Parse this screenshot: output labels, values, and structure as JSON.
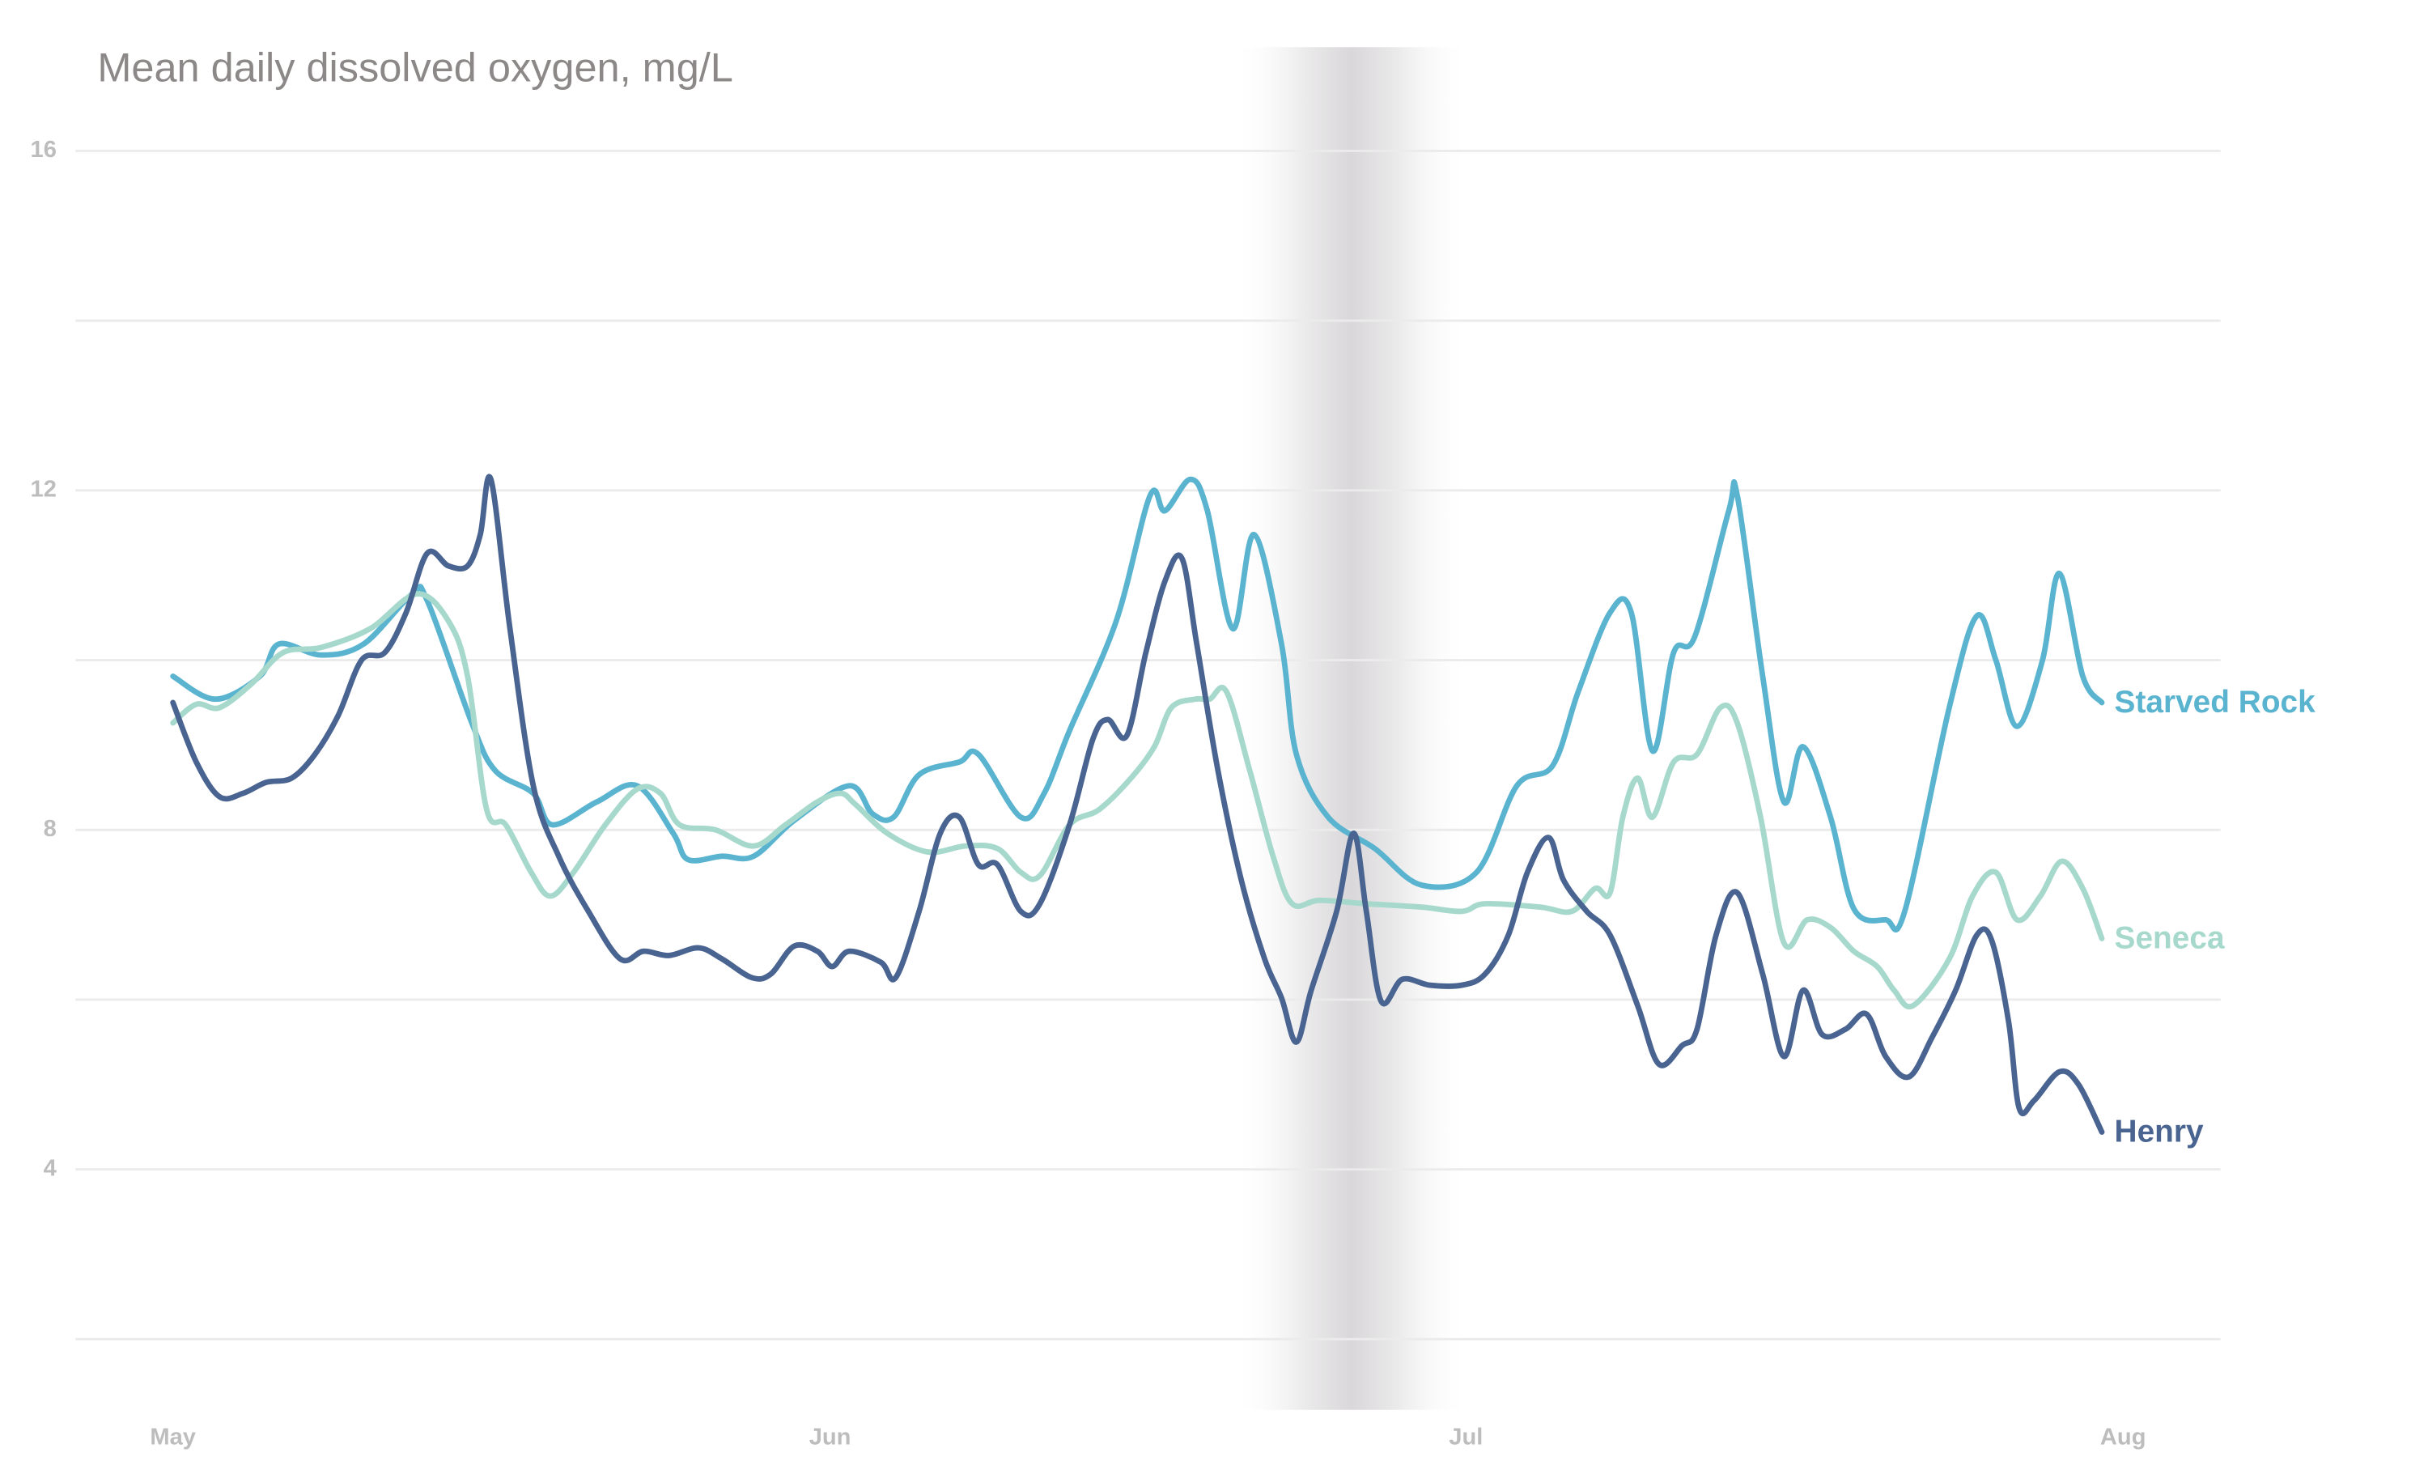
{
  "chart_data": {
    "type": "line",
    "title": "Mean daily dissolved oxygen, mg/L",
    "xlim": [
      -4.6,
      96.6
    ],
    "xticks": [
      {
        "value": 0,
        "label": "May"
      },
      {
        "value": 31,
        "label": "Jun"
      },
      {
        "value": 61,
        "label": "Jul"
      },
      {
        "value": 92,
        "label": "Aug"
      }
    ],
    "ylim": [
      2,
      16
    ],
    "yticks": [
      4,
      8,
      12,
      16
    ],
    "minor_yticks": [
      2,
      6,
      10,
      14
    ],
    "grid": true,
    "highlight": [
      50.0,
      61.2
    ],
    "series": [
      {
        "name": "Starved Rock",
        "color": "#5ab4d0",
        "x": [
          0,
          2.0,
          4.1,
          5.0,
          7.0,
          9.0,
          11.3,
          12.0,
          14.1,
          15.2,
          17.0,
          17.9,
          20.0,
          21.9,
          23.6,
          24.3,
          25.9,
          27.4,
          29.3,
          31.9,
          33.0,
          34.0,
          35.2,
          37.1,
          38.0,
          40.0,
          41.1,
          42.3,
          44.5,
          46.1,
          46.8,
          48.0,
          48.8,
          50.0,
          51.0,
          52.3,
          53.0,
          54.5,
          56.7,
          58.9,
          61.5,
          63.4,
          65.1,
          66.3,
          67.8,
          68.8,
          69.8,
          70.8,
          71.8,
          73.4,
          73.8,
          75.0,
          76.0,
          76.9,
          78.2,
          79.3,
          80.8,
          81.7,
          83.8,
          85.1,
          86.0,
          87.0,
          88.2,
          89.0,
          90.1,
          91.0
        ],
        "values": [
          9.81,
          9.54,
          9.81,
          10.19,
          10.06,
          10.19,
          10.78,
          10.7,
          9.26,
          8.7,
          8.43,
          8.06,
          8.33,
          8.52,
          7.96,
          7.65,
          7.69,
          7.69,
          8.11,
          8.52,
          8.19,
          8.15,
          8.65,
          8.8,
          8.89,
          8.15,
          8.43,
          9.17,
          10.46,
          11.94,
          11.76,
          12.13,
          11.76,
          10.37,
          11.48,
          10.19,
          8.89,
          8.15,
          7.78,
          7.35,
          7.5,
          8.52,
          8.76,
          9.63,
          10.56,
          10.56,
          8.93,
          10.09,
          10.28,
          11.76,
          11.94,
          9.81,
          8.33,
          8.98,
          8.15,
          7.07,
          6.94,
          7.04,
          9.44,
          10.52,
          10.0,
          9.22,
          10.0,
          11.02,
          9.81,
          9.5
        ]
      },
      {
        "name": "Seneca",
        "color": "#a6d9cc",
        "x": [
          0,
          1.1,
          2.2,
          3.7,
          5.2,
          7.0,
          9.3,
          11.5,
          13.0,
          13.9,
          14.8,
          15.7,
          16.9,
          17.8,
          18.9,
          20.4,
          21.9,
          23.0,
          23.9,
          25.6,
          27.4,
          28.9,
          30.4,
          31.5,
          32.2,
          33.7,
          35.6,
          37.4,
          38.9,
          40.0,
          40.9,
          42.3,
          43.7,
          45.2,
          46.3,
          47.1,
          48.2,
          48.9,
          49.7,
          50.8,
          51.9,
          52.8,
          54.1,
          56.3,
          58.9,
          60.8,
          61.9,
          64.5,
          66.0,
          67.1,
          67.8,
          68.4,
          69.1,
          69.8,
          70.8,
          71.9,
          73.0,
          73.8,
          74.9,
          76.0,
          77.1,
          78.2,
          79.3,
          80.4,
          81.2,
          82.1,
          83.8,
          84.9,
          86.0,
          87.0,
          88.1,
          89.1,
          90.1,
          91.0
        ],
        "values": [
          9.26,
          9.48,
          9.44,
          9.72,
          10.09,
          10.15,
          10.37,
          10.78,
          10.46,
          9.81,
          8.24,
          8.06,
          7.5,
          7.22,
          7.5,
          8.06,
          8.48,
          8.43,
          8.06,
          8.0,
          7.81,
          8.06,
          8.33,
          8.43,
          8.3,
          7.96,
          7.74,
          7.81,
          7.78,
          7.5,
          7.46,
          8.06,
          8.24,
          8.61,
          8.98,
          9.44,
          9.54,
          9.54,
          9.63,
          8.7,
          7.69,
          7.13,
          7.17,
          7.13,
          7.09,
          7.04,
          7.13,
          7.09,
          7.04,
          7.31,
          7.26,
          8.15,
          8.61,
          8.15,
          8.8,
          8.89,
          9.44,
          9.26,
          8.15,
          6.67,
          6.94,
          6.85,
          6.57,
          6.39,
          6.11,
          5.93,
          6.48,
          7.22,
          7.5,
          6.94,
          7.22,
          7.63,
          7.31,
          6.72
        ]
      },
      {
        "name": "Henry",
        "color": "#4a6491",
        "x": [
          0,
          1.1,
          2.2,
          3.3,
          4.4,
          5.6,
          6.7,
          7.8,
          8.9,
          10.0,
          11.0,
          12.0,
          13.0,
          13.9,
          14.5,
          15.0,
          15.9,
          17.0,
          18.2,
          19.6,
          21.1,
          22.2,
          23.4,
          24.8,
          25.9,
          27.3,
          28.2,
          29.3,
          30.4,
          31.1,
          31.9,
          33.4,
          34.1,
          35.2,
          36.2,
          37.1,
          38.0,
          38.9,
          40.0,
          40.9,
          42.3,
          43.4,
          44.1,
          45.0,
          45.9,
          46.8,
          47.6,
          48.3,
          49.3,
          50.4,
          51.5,
          52.3,
          53.0,
          53.7,
          54.9,
          55.7,
          56.3,
          57.0,
          58.0,
          59.3,
          60.8,
          61.9,
          63.0,
          63.9,
          64.9,
          65.6,
          66.7,
          67.8,
          69.1,
          70.1,
          71.2,
          71.9,
          72.8,
          73.8,
          75.0,
          76.0,
          76.9,
          77.8,
          78.9,
          79.9,
          80.8,
          81.9,
          83.0,
          84.1,
          85.1,
          85.8,
          86.6,
          87.1,
          87.8,
          89.0,
          89.9,
          91.0
        ],
        "values": [
          9.5,
          8.8,
          8.39,
          8.43,
          8.56,
          8.61,
          8.89,
          9.35,
          10.0,
          10.09,
          10.56,
          11.26,
          11.11,
          11.11,
          11.48,
          12.13,
          10.37,
          8.52,
          7.69,
          7.04,
          6.48,
          6.57,
          6.52,
          6.61,
          6.48,
          6.26,
          6.3,
          6.63,
          6.57,
          6.39,
          6.57,
          6.44,
          6.26,
          7.04,
          7.96,
          8.15,
          7.59,
          7.59,
          7.04,
          7.13,
          8.06,
          9.07,
          9.3,
          9.11,
          10.09,
          10.93,
          11.2,
          10.19,
          8.7,
          7.41,
          6.48,
          6.02,
          5.5,
          6.11,
          7.04,
          7.96,
          7.04,
          5.98,
          6.24,
          6.17,
          6.17,
          6.3,
          6.76,
          7.5,
          7.91,
          7.41,
          7.04,
          6.76,
          5.93,
          5.24,
          5.46,
          5.65,
          6.76,
          7.26,
          6.3,
          5.33,
          6.11,
          5.59,
          5.65,
          5.83,
          5.33,
          5.09,
          5.56,
          6.11,
          6.76,
          6.7,
          5.74,
          4.72,
          4.81,
          5.15,
          5.0,
          4.44
        ]
      }
    ]
  }
}
